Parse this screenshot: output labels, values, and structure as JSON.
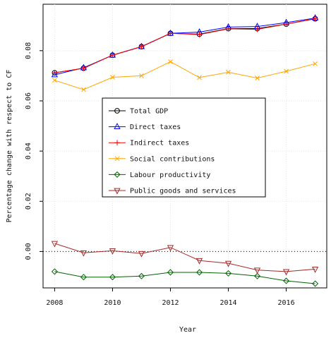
{
  "chart_data": {
    "type": "line",
    "title": "",
    "xlabel": "Year",
    "ylabel": "Percentage change with respect to CF",
    "xlim": [
      2007.6,
      2017.4
    ],
    "ylim": [
      -0.0145,
      0.0985
    ],
    "x_ticks": [
      2008,
      2010,
      2012,
      2014,
      2016
    ],
    "x_tick_labels": [
      "2008",
      "2010",
      "2012",
      "2014",
      "2016"
    ],
    "y_ticks": [
      0.0,
      0.02,
      0.04,
      0.06,
      0.08
    ],
    "y_tick_labels": [
      "0.00",
      "0.02",
      "0.04",
      "0.06",
      "0.08"
    ],
    "grid": true,
    "reference_line": {
      "y": 0.0,
      "style": "dotted"
    },
    "legend_position": "center-left",
    "x": [
      2008,
      2009,
      2010,
      2011,
      2012,
      2013,
      2014,
      2015,
      2016,
      2017
    ],
    "series": [
      {
        "name": "Total GDP",
        "color": "#000000",
        "marker": "circle",
        "values": [
          0.0712,
          0.073,
          0.0782,
          0.0816,
          0.0869,
          0.0866,
          0.0888,
          0.0888,
          0.0906,
          0.0927
        ]
      },
      {
        "name": "Direct taxes",
        "color": "#0000ff",
        "marker": "triangle-up",
        "values": [
          0.0704,
          0.0732,
          0.0782,
          0.0816,
          0.0869,
          0.0874,
          0.0894,
          0.0896,
          0.0912,
          0.093
        ]
      },
      {
        "name": "Indirect taxes",
        "color": "#ff0000",
        "marker": "plus",
        "values": [
          0.0712,
          0.073,
          0.0782,
          0.0816,
          0.0869,
          0.0864,
          0.0887,
          0.0885,
          0.0906,
          0.0928
        ]
      },
      {
        "name": "Social contributions",
        "color": "#ffa500",
        "marker": "x",
        "values": [
          0.0682,
          0.0645,
          0.0694,
          0.07,
          0.0756,
          0.0693,
          0.0714,
          0.0691,
          0.0718,
          0.0748
        ]
      },
      {
        "name": "Labour productivity",
        "color": "#006400",
        "marker": "diamond",
        "values": [
          -0.008,
          -0.0102,
          -0.0102,
          -0.0098,
          -0.0083,
          -0.0083,
          -0.0087,
          -0.0098,
          -0.0117,
          -0.0128
        ]
      },
      {
        "name": "Public goods and services",
        "color": "#a52a2a",
        "marker": "triangle-down",
        "values": [
          0.0032,
          -0.0005,
          0.0003,
          -0.0008,
          0.0016,
          -0.0036,
          -0.0047,
          -0.0074,
          -0.008,
          -0.007
        ]
      }
    ]
  }
}
